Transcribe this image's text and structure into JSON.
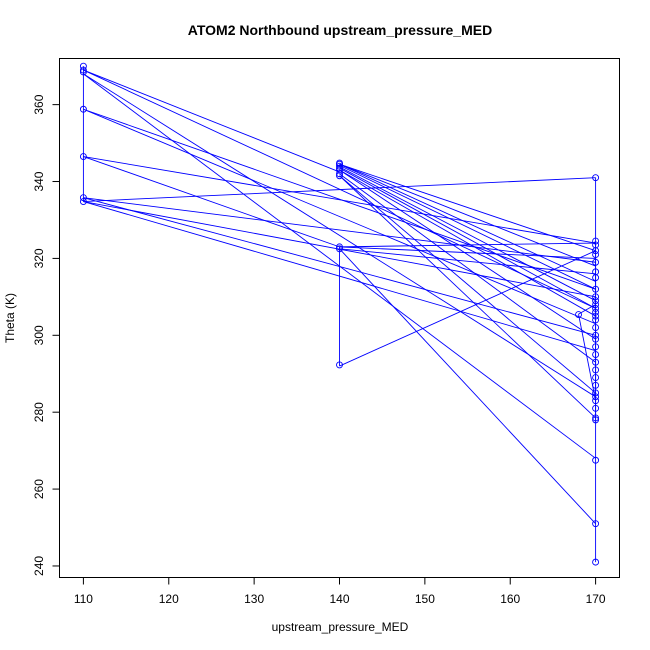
{
  "chart_data": {
    "type": "line",
    "title": "ATOM2 Northbound upstream_pressure_MED",
    "xlabel": "upstream_pressure_MED",
    "ylabel": "Theta (K)",
    "xlim": [
      107.2,
      172.8
    ],
    "ylim": [
      237.0,
      372.0
    ],
    "x_ticks": [
      110,
      120,
      130,
      140,
      150,
      160,
      170
    ],
    "y_ticks": [
      240,
      260,
      280,
      300,
      320,
      340,
      360
    ],
    "grid": false,
    "legend": "none",
    "series_color": "#0000ff",
    "marker": "open-circle",
    "series": [
      {
        "segments": [
          [
            [
              110,
              370
            ],
            [
              110,
              369
            ]
          ],
          [
            [
              110,
              369
            ],
            [
              110,
              358.8
            ]
          ],
          [
            [
              110,
              358.8
            ],
            [
              110,
              346.5
            ]
          ],
          [
            [
              110,
              346.5
            ],
            [
              110,
              335.8
            ]
          ],
          [
            [
              110,
              335.8
            ],
            [
              110,
              334.8
            ]
          ],
          [
            [
              110,
              369
            ],
            [
              140,
              342.5
            ]
          ],
          [
            [
              110,
              369
            ],
            [
              170,
              307
            ]
          ],
          [
            [
              110,
              368
            ],
            [
              170,
              284
            ]
          ],
          [
            [
              110,
              368
            ],
            [
              170,
              268
            ]
          ],
          [
            [
              110,
              358.8
            ],
            [
              170,
              312
            ]
          ],
          [
            [
              110,
              358.8
            ],
            [
              170,
              303
            ]
          ],
          [
            [
              110,
              346.5
            ],
            [
              170,
              324
            ]
          ],
          [
            [
              110,
              346.5
            ],
            [
              140,
              323
            ]
          ],
          [
            [
              110,
              335.8
            ],
            [
              170,
              319
            ]
          ],
          [
            [
              110,
              335.8
            ],
            [
              170,
              300
            ]
          ],
          [
            [
              110,
              334.8
            ],
            [
              170,
              341
            ]
          ],
          [
            [
              110,
              334.8
            ],
            [
              170,
              310
            ]
          ],
          [
            [
              110,
              334.8
            ],
            [
              170,
              296
            ]
          ],
          [
            [
              140,
              344.5
            ],
            [
              170,
              322
            ]
          ],
          [
            [
              140,
              344.5
            ],
            [
              170,
              318
            ]
          ],
          [
            [
              140,
              344.5
            ],
            [
              170,
              314
            ]
          ],
          [
            [
              140,
              344.2
            ],
            [
              170,
              312
            ]
          ],
          [
            [
              140,
              343.8
            ],
            [
              170,
              309
            ]
          ],
          [
            [
              140,
              343.5
            ],
            [
              170,
              307
            ]
          ],
          [
            [
              140,
              343
            ],
            [
              170,
              305
            ]
          ],
          [
            [
              140,
              343
            ],
            [
              170,
              299
            ]
          ],
          [
            [
              140,
              342
            ],
            [
              170,
              293
            ]
          ],
          [
            [
              140,
              341.5
            ],
            [
              170,
              285
            ]
          ],
          [
            [
              140,
              341.5
            ],
            [
              170,
              278.5
            ]
          ],
          [
            [
              140,
              323
            ],
            [
              170,
              324
            ]
          ],
          [
            [
              140,
              323
            ],
            [
              170,
              320
            ]
          ],
          [
            [
              140,
              322.5
            ],
            [
              170,
              316
            ]
          ],
          [
            [
              140,
              323
            ],
            [
              140,
              292
            ]
          ],
          [
            [
              140,
              292
            ],
            [
              170,
              322
            ]
          ],
          [
            [
              140,
              322.5
            ],
            [
              170,
              251
            ]
          ],
          [
            [
              168,
              305.5
            ],
            [
              170,
              283
            ]
          ],
          [
            [
              168,
              305.5
            ],
            [
              170,
              308
            ]
          ],
          [
            [
              170,
              341
            ],
            [
              170,
              241
            ]
          ],
          [
            [
              170,
              324
            ],
            [
              170,
              310
            ]
          ],
          [
            [
              170,
              310
            ],
            [
              170,
              278
            ]
          ]
        ],
        "points": [
          [
            110,
            370
          ],
          [
            110,
            369
          ],
          [
            110,
            368.5
          ],
          [
            110,
            358.8
          ],
          [
            110,
            346.5
          ],
          [
            110,
            335.8
          ],
          [
            110,
            334.8
          ],
          [
            140,
            344.8
          ],
          [
            140,
            344.5
          ],
          [
            140,
            344.0
          ],
          [
            140,
            343.5
          ],
          [
            140,
            343.0
          ],
          [
            140,
            342.0
          ],
          [
            140,
            341.5
          ],
          [
            140,
            323.0
          ],
          [
            140,
            322.5
          ],
          [
            140,
            292.3
          ],
          [
            168,
            305.4
          ],
          [
            170,
            341
          ],
          [
            170,
            324.5
          ],
          [
            170,
            323.5
          ],
          [
            170,
            322.0
          ],
          [
            170,
            321.0
          ],
          [
            170,
            319.0
          ],
          [
            170,
            316.5
          ],
          [
            170,
            315.0
          ],
          [
            170,
            312.0
          ],
          [
            170,
            310.0
          ],
          [
            170,
            309.0
          ],
          [
            170,
            308.0
          ],
          [
            170,
            307.0
          ],
          [
            170,
            306.0
          ],
          [
            170,
            305.0
          ],
          [
            170,
            304.0
          ],
          [
            170,
            302.0
          ],
          [
            170,
            300.0
          ],
          [
            170,
            299.0
          ],
          [
            170,
            297.0
          ],
          [
            170,
            295.0
          ],
          [
            170,
            293.0
          ],
          [
            170,
            291.0
          ],
          [
            170,
            289.0
          ],
          [
            170,
            287.0
          ],
          [
            170,
            285.0
          ],
          [
            170,
            284.0
          ],
          [
            170,
            283.0
          ],
          [
            170,
            281.0
          ],
          [
            170,
            278.5
          ],
          [
            170,
            278.0
          ],
          [
            170,
            267.5
          ],
          [
            170,
            251.0
          ],
          [
            170,
            241.0
          ]
        ]
      }
    ]
  }
}
